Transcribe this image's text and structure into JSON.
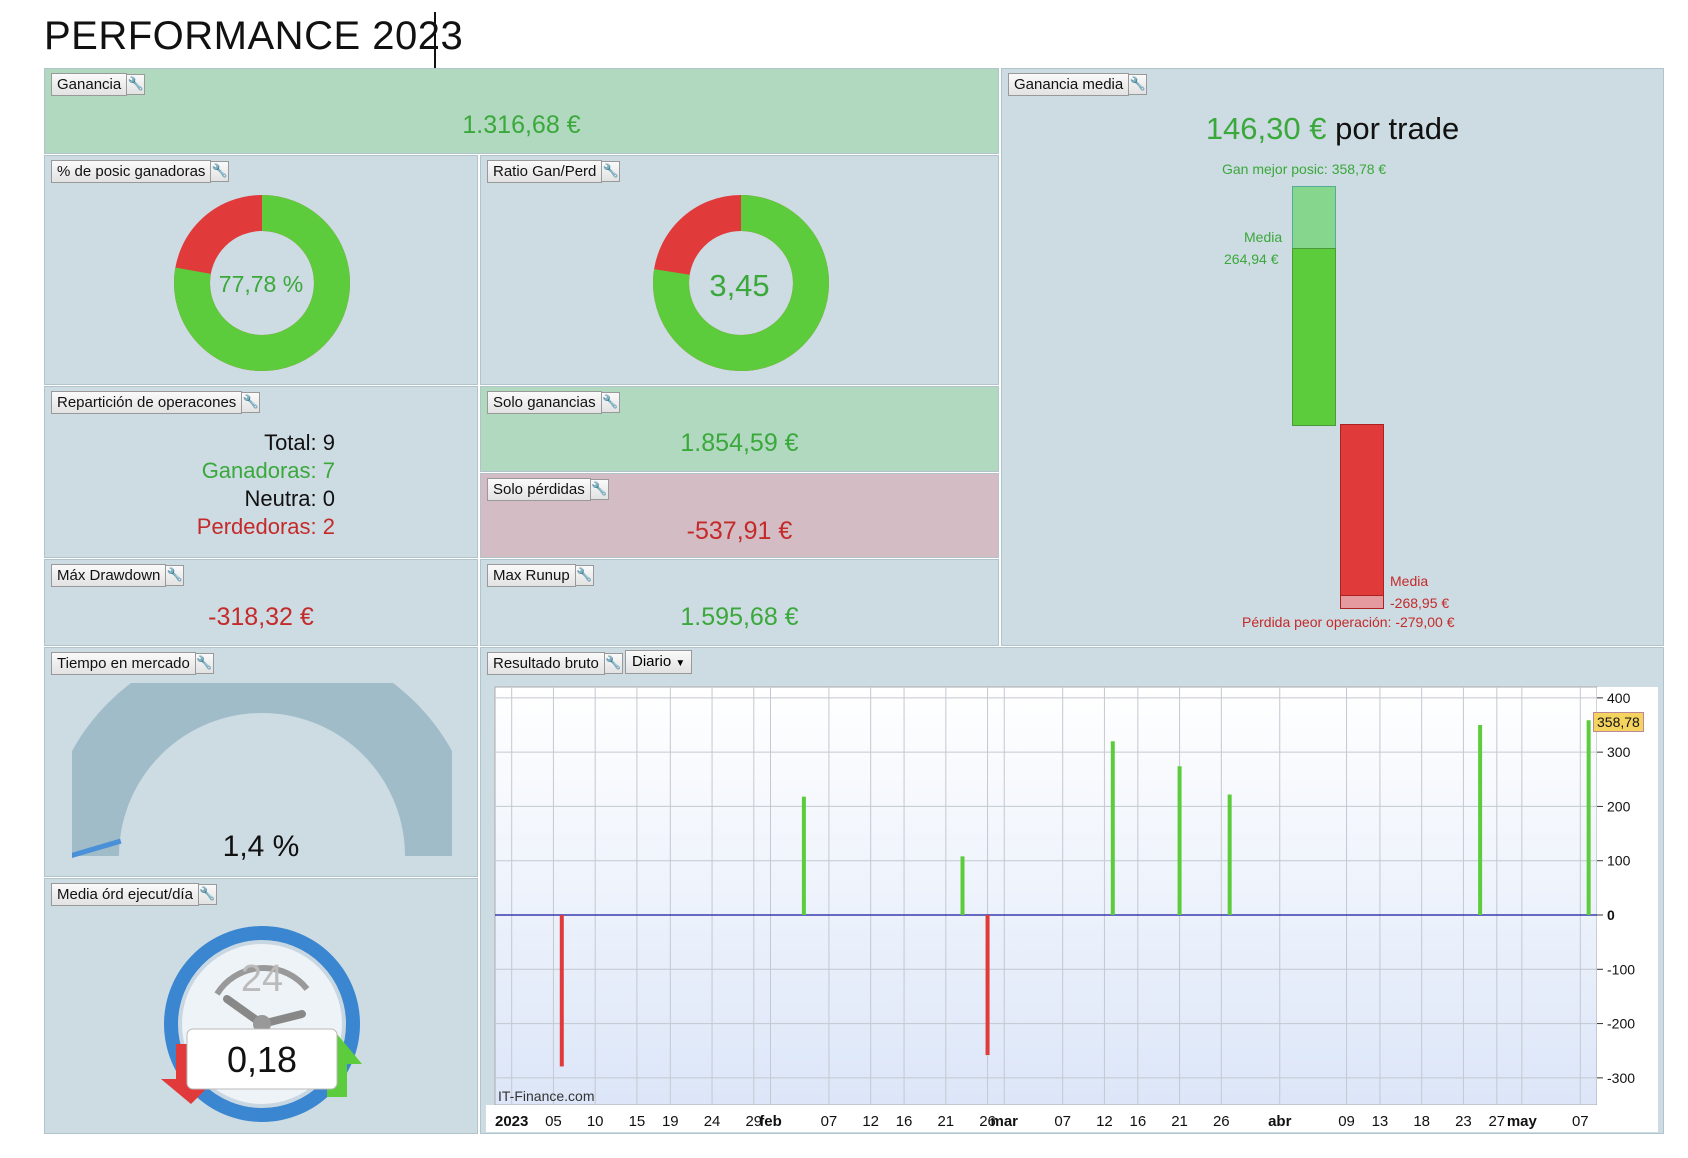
{
  "page_title": "PERFORMANCE 2023",
  "panels": {
    "ganancia": {
      "title": "Ganancia",
      "value": "1.316,68 €"
    },
    "ganancia_media": {
      "title": "Ganancia media",
      "value": "146,30 €",
      "suffix": "por trade",
      "best": "Gan mejor posic: 358,78 €",
      "media_pos_label": "Media",
      "media_pos_value": "264,94 €",
      "media_neg_label": "Media",
      "media_neg_value": "-268,95 €",
      "worst": "Pérdida peor operación: -279,00 €"
    },
    "pct_ganadoras": {
      "title": "% de posic ganadoras",
      "value": "77,78 %",
      "fraction": 0.7778
    },
    "ratio": {
      "title": "Ratio Gan/Perd",
      "value": "3,45",
      "fraction": 0.775
    },
    "reparticion": {
      "title": "Repartición de operacones",
      "total": "Total: 9",
      "ganadoras": "Ganadoras: 7",
      "neutra": "Neutra: 0",
      "perdedoras": "Perdedoras: 2"
    },
    "solo_ganancias": {
      "title": "Solo ganancias",
      "value": "1.854,59 €"
    },
    "solo_perdidas": {
      "title": "Solo pérdidas",
      "value": "-537,91 €"
    },
    "max_drawdown": {
      "title": "Máx Drawdown",
      "value": "-318,32 €"
    },
    "max_runup": {
      "title": "Max Runup",
      "value": "1.595,68 €"
    },
    "tiempo": {
      "title": "Tiempo en mercado",
      "value": "1,4 %",
      "fraction": 0.014
    },
    "media_ord": {
      "title": "Media órd ejecut/día",
      "value": "0,18",
      "clock_label": "24"
    },
    "resultado": {
      "title": "Resultado bruto",
      "period": "Diario",
      "watermark": "IT-Finance.com",
      "current_badge": "358,78"
    }
  },
  "colors": {
    "green": "#5ccc3c",
    "red": "#e03a3a",
    "panel": "#cddbe3",
    "panel_green": "#b0d9c0",
    "panel_red": "#d3bcc3"
  },
  "icons": {
    "wrench": "wrench-icon",
    "dropdown": "chevron-down-icon"
  },
  "chart_data": {
    "type": "bar",
    "ylim": [
      -350,
      420
    ],
    "y_ticks": [
      400,
      300,
      200,
      100,
      0,
      -100,
      -200,
      -300
    ],
    "x_ticks": [
      {
        "label": "2023",
        "bold": true,
        "day": 0
      },
      {
        "label": "05",
        "day": 5
      },
      {
        "label": "10",
        "day": 10
      },
      {
        "label": "15",
        "day": 15
      },
      {
        "label": "19",
        "day": 19
      },
      {
        "label": "24",
        "day": 24
      },
      {
        "label": "29",
        "day": 29
      },
      {
        "label": "feb",
        "bold": true,
        "day": 31
      },
      {
        "label": "07",
        "day": 38
      },
      {
        "label": "12",
        "day": 43
      },
      {
        "label": "16",
        "day": 47
      },
      {
        "label": "21",
        "day": 52
      },
      {
        "label": "26",
        "day": 57
      },
      {
        "label": "mar",
        "bold": true,
        "day": 59
      },
      {
        "label": "07",
        "day": 66
      },
      {
        "label": "12",
        "day": 71
      },
      {
        "label": "16",
        "day": 75
      },
      {
        "label": "21",
        "day": 80
      },
      {
        "label": "26",
        "day": 85
      },
      {
        "label": "abr",
        "bold": true,
        "day": 92
      },
      {
        "label": "09",
        "day": 100
      },
      {
        "label": "13",
        "day": 104
      },
      {
        "label": "18",
        "day": 109
      },
      {
        "label": "23",
        "day": 114
      },
      {
        "label": "27",
        "day": 118
      },
      {
        "label": "may",
        "bold": true,
        "day": 121
      },
      {
        "label": "07",
        "day": 128
      }
    ],
    "x_range": [
      -2,
      130
    ],
    "bars": [
      {
        "day": 6,
        "value": -279
      },
      {
        "day": 35,
        "value": 218
      },
      {
        "day": 54,
        "value": 108
      },
      {
        "day": 57,
        "value": -258
      },
      {
        "day": 72,
        "value": 320
      },
      {
        "day": 80,
        "value": 274
      },
      {
        "day": 86,
        "value": 222
      },
      {
        "day": 116,
        "value": 350
      },
      {
        "day": 129,
        "value": 358.78
      }
    ]
  }
}
